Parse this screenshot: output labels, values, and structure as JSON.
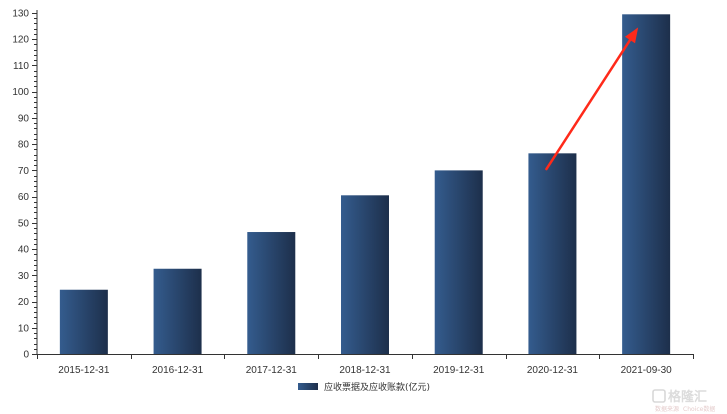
{
  "chart_data": {
    "type": "bar",
    "categories": [
      "2015-12-31",
      "2016-12-31",
      "2017-12-31",
      "2018-12-31",
      "2019-12-31",
      "2020-12-31",
      "2021-09-30"
    ],
    "series": [
      {
        "name": "应收票据及应收账款(亿元)",
        "values": [
          24.5,
          32.5,
          46.5,
          60.5,
          70,
          76.5,
          129.5
        ]
      }
    ],
    "ylim": [
      0,
      130
    ],
    "yticks": [
      0,
      10,
      20,
      30,
      40,
      50,
      60,
      70,
      80,
      90,
      100,
      110,
      120,
      130
    ],
    "y_minor_step": 2,
    "grid": false,
    "legend_position": "bottom-center",
    "colors": {
      "bar_left": "#345c8e",
      "bar_right": "#1d2f4b",
      "axis": "#333333",
      "arrow": "#ff2a1a"
    },
    "annotation": {
      "type": "arrow",
      "from_category": "2020-12-31",
      "from_value": 70.5,
      "to_category": "2021-09-30",
      "to_value": 124.5
    }
  },
  "watermark": {
    "logo": "格隆汇",
    "sub_left": "数据来源",
    "sub_right": "Choice数据"
  }
}
